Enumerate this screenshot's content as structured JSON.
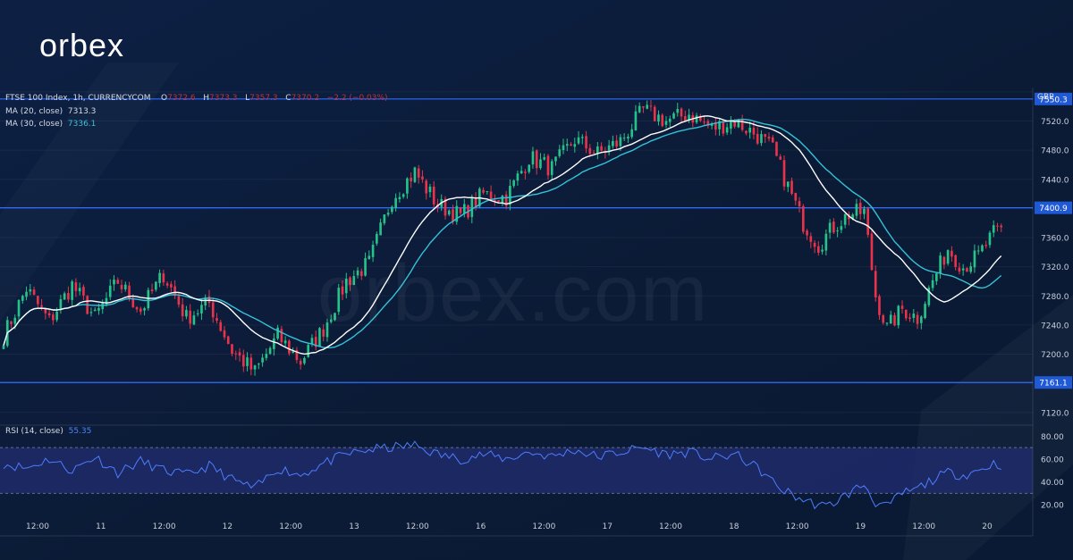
{
  "brand": {
    "logo_text": "orbex",
    "watermark": "orbex.com"
  },
  "legend": {
    "symbol": "FTSE 100 Index, 1h, CURRENCYCOM",
    "ohlc": [
      {
        "key": "O",
        "value": "7372.6"
      },
      {
        "key": "H",
        "value": "7373.3"
      },
      {
        "key": "L",
        "value": "7357.3"
      },
      {
        "key": "C",
        "value": "7370.2"
      }
    ],
    "change": "−2.2 (−0.03%)",
    "ma20_label": "MA (20, close)",
    "ma20_value": "7313.3",
    "ma30_label": "MA (30, close)",
    "ma30_value": "7336.1",
    "rsi_label": "RSI (14, close)",
    "rsi_value": "55.35"
  },
  "colors": {
    "background": "#0b1c38",
    "up_candle": "#27c28a",
    "down_candle": "#e8334a",
    "ma20": "#ffffff",
    "ma30": "#33c2d8",
    "rsi_line": "#4d7dff",
    "rsi_band": "#1e2a6a",
    "level_line": "#2f6bff"
  },
  "chart_data": [
    {
      "type": "candlestick",
      "currency_label": "GBP",
      "ylim": [
        7105,
        7566
      ],
      "y_ticks": [
        7560,
        7520,
        7480,
        7440,
        7400,
        7360,
        7320,
        7280,
        7240,
        7200,
        7160,
        7120
      ],
      "x_tick_labels": [
        "12:00",
        "11",
        "12:00",
        "12",
        "12:00",
        "13",
        "12:00",
        "16",
        "12:00",
        "17",
        "12:00",
        "18",
        "12:00",
        "19",
        "12:00",
        "20"
      ],
      "horizontal_levels": [
        "7550.3",
        "7400.9",
        "7161.1"
      ],
      "close_path": [
        [
          0,
          7225
        ],
        [
          6,
          7290
        ],
        [
          12,
          7245
        ],
        [
          18,
          7295
        ],
        [
          24,
          7250
        ],
        [
          30,
          7300
        ],
        [
          36,
          7260
        ],
        [
          42,
          7310
        ],
        [
          48,
          7250
        ],
        [
          54,
          7270
        ],
        [
          60,
          7205
        ],
        [
          66,
          7175
        ],
        [
          72,
          7225
        ],
        [
          78,
          7190
        ],
        [
          84,
          7235
        ],
        [
          90,
          7300
        ],
        [
          96,
          7325
        ],
        [
          102,
          7415
        ],
        [
          108,
          7450
        ],
        [
          114,
          7405
        ],
        [
          120,
          7390
        ],
        [
          126,
          7420
        ],
        [
          132,
          7415
        ],
        [
          138,
          7470
        ],
        [
          144,
          7455
        ],
        [
          150,
          7495
        ],
        [
          156,
          7475
        ],
        [
          162,
          7492
        ],
        [
          168,
          7535
        ],
        [
          174,
          7520
        ],
        [
          180,
          7530
        ],
        [
          186,
          7510
        ],
        [
          192,
          7520
        ],
        [
          198,
          7500
        ],
        [
          202,
          7480
        ],
        [
          206,
          7430
        ],
        [
          210,
          7380
        ],
        [
          214,
          7350
        ],
        [
          218,
          7375
        ],
        [
          222,
          7392
        ],
        [
          226,
          7395
        ],
        [
          229,
          7280
        ],
        [
          232,
          7235
        ],
        [
          236,
          7262
        ],
        [
          240,
          7250
        ],
        [
          244,
          7300
        ],
        [
          248,
          7345
        ],
        [
          252,
          7320
        ],
        [
          256,
          7335
        ],
        [
          260,
          7365
        ],
        [
          262,
          7370
        ]
      ]
    },
    {
      "type": "line",
      "name": "RSI (14, close)",
      "ylim": [
        10,
        88
      ],
      "y_ticks": [
        80,
        60,
        40,
        20
      ],
      "band": [
        30,
        70
      ],
      "path": [
        [
          0,
          56
        ],
        [
          6,
          52
        ],
        [
          12,
          60
        ],
        [
          18,
          50
        ],
        [
          24,
          62
        ],
        [
          30,
          48
        ],
        [
          36,
          58
        ],
        [
          42,
          50
        ],
        [
          48,
          46
        ],
        [
          54,
          54
        ],
        [
          60,
          42
        ],
        [
          66,
          34
        ],
        [
          72,
          52
        ],
        [
          78,
          46
        ],
        [
          84,
          56
        ],
        [
          90,
          64
        ],
        [
          96,
          68
        ],
        [
          102,
          70
        ],
        [
          108,
          72
        ],
        [
          114,
          64
        ],
        [
          120,
          60
        ],
        [
          126,
          64
        ],
        [
          132,
          60
        ],
        [
          138,
          66
        ],
        [
          144,
          62
        ],
        [
          150,
          68
        ],
        [
          156,
          62
        ],
        [
          162,
          66
        ],
        [
          168,
          70
        ],
        [
          174,
          64
        ],
        [
          180,
          66
        ],
        [
          186,
          60
        ],
        [
          192,
          64
        ],
        [
          198,
          52
        ],
        [
          204,
          34
        ],
        [
          210,
          24
        ],
        [
          216,
          18
        ],
        [
          222,
          30
        ],
        [
          226,
          38
        ],
        [
          229,
          22
        ],
        [
          232,
          18
        ],
        [
          236,
          30
        ],
        [
          240,
          34
        ],
        [
          244,
          42
        ],
        [
          248,
          48
        ],
        [
          252,
          46
        ],
        [
          256,
          50
        ],
        [
          260,
          56
        ],
        [
          262,
          55
        ]
      ]
    }
  ]
}
